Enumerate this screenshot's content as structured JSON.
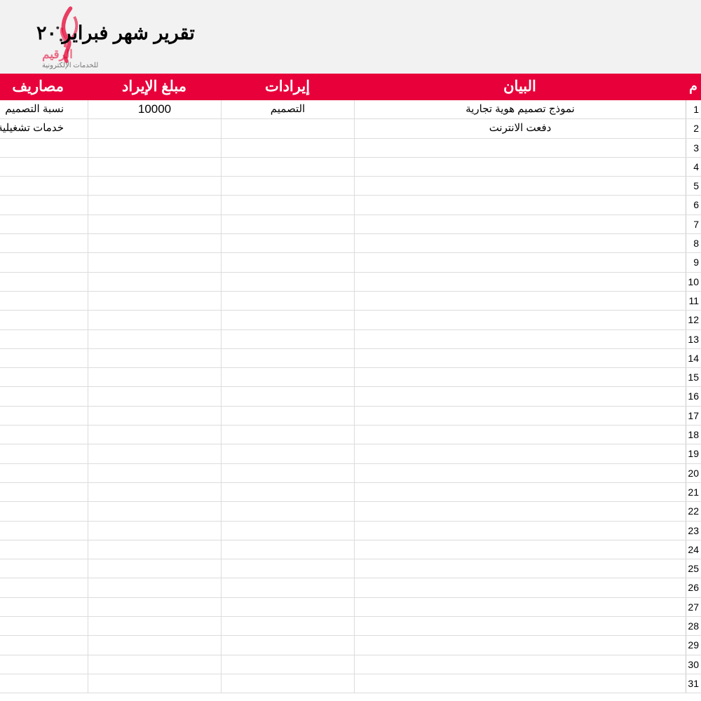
{
  "title": "تقرير شهر فبراير ٢٠",
  "logo": {
    "name": "الرقيم",
    "subtitle": "للخدمات الإلكترونية"
  },
  "colors": {
    "header_bg": "#e8003a",
    "title_bg": "#f2f2f2"
  },
  "columns": [
    "م",
    "البيان",
    "إيرادات",
    "مبلغ الإيراد",
    "مصاريف"
  ],
  "rows": [
    {
      "num": "1",
      "desc": "نموذج تصميم هوية تجارية",
      "income": "التصميم",
      "amount": "10000",
      "expense": "نسبة التصميم"
    },
    {
      "num": "2",
      "desc": "دفعت الانترنت",
      "income": "",
      "amount": "",
      "expense": "خدمات تشغيلية"
    },
    {
      "num": "3"
    },
    {
      "num": "4"
    },
    {
      "num": "5"
    },
    {
      "num": "6"
    },
    {
      "num": "7"
    },
    {
      "num": "8"
    },
    {
      "num": "9"
    },
    {
      "num": "10"
    },
    {
      "num": "11"
    },
    {
      "num": "12"
    },
    {
      "num": "13"
    },
    {
      "num": "14"
    },
    {
      "num": "15"
    },
    {
      "num": "16"
    },
    {
      "num": "17"
    },
    {
      "num": "18"
    },
    {
      "num": "19"
    },
    {
      "num": "20"
    },
    {
      "num": "21"
    },
    {
      "num": "22"
    },
    {
      "num": "23"
    },
    {
      "num": "24"
    },
    {
      "num": "25"
    },
    {
      "num": "26"
    },
    {
      "num": "27"
    },
    {
      "num": "28"
    },
    {
      "num": "29"
    },
    {
      "num": "30"
    },
    {
      "num": "31"
    }
  ]
}
